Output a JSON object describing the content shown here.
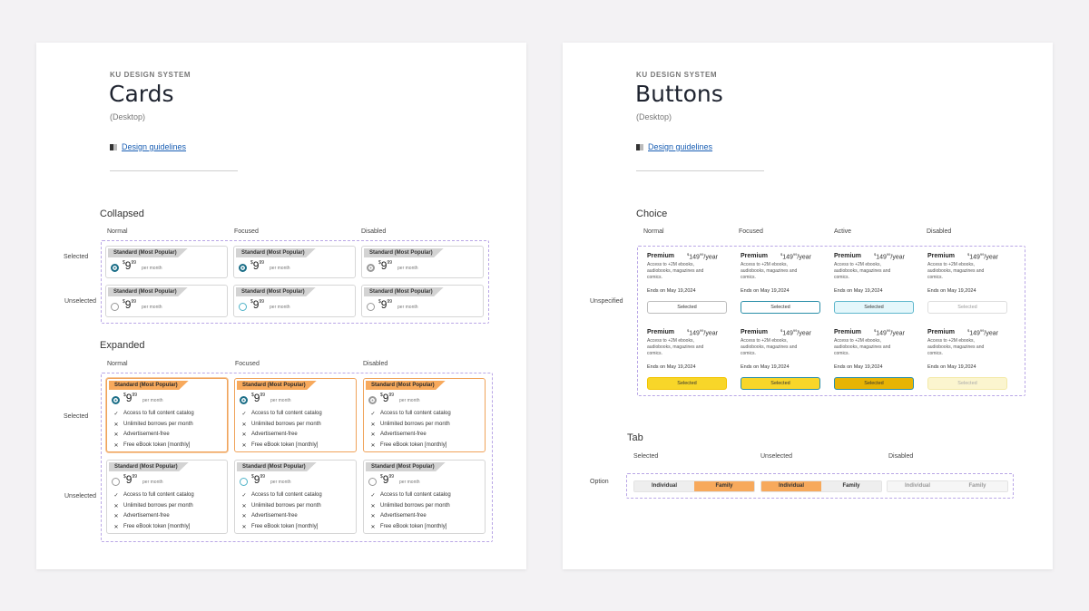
{
  "cards_sheet": {
    "label": "KU DESIGN SYSTEM",
    "title": "Cards",
    "subtitle": "(Desktop)",
    "link": "Design guidelines",
    "collapsed": {
      "title": "Collapsed",
      "columns": [
        "Normal",
        "Focused",
        "Disabled"
      ],
      "rows": [
        "Selected",
        "Unselected"
      ]
    },
    "expanded": {
      "title": "Expanded",
      "columns": [
        "Normal",
        "Focused",
        "Disabled"
      ],
      "rows": [
        "Selected",
        "Unselected"
      ]
    },
    "card": {
      "tag": "Standard (Most Popular)",
      "price_dollar": "$",
      "price_main": "9",
      "price_cents": "99",
      "per": "per month",
      "features": [
        {
          "mark": "✓",
          "text": "Access to full content catalog"
        },
        {
          "mark": "✕",
          "text": "Unlimited borrows per month"
        },
        {
          "mark": "✕",
          "text": "Advertisement-free"
        },
        {
          "mark": "✕",
          "text": "Free eBook token [monthly]"
        }
      ]
    }
  },
  "buttons_sheet": {
    "label": "KU DESIGN SYSTEM",
    "title": "Buttons",
    "subtitle": "(Desktop)",
    "link": "Design guidelines",
    "choice": {
      "title": "Choice",
      "columns": [
        "Normal",
        "Focused",
        "Active",
        "Disabled"
      ],
      "row": "Unspecified",
      "card": {
        "name": "Premium",
        "price_dollar": "$",
        "price_main": "149",
        "price_cents": "99",
        "price_suffix": "/year",
        "description": "Access to +2M ebooks, audiobooks, magazines and comics.",
        "ends": "Ends on May 19,2024",
        "button": "Selected"
      }
    },
    "tab": {
      "title": "Tab",
      "columns": [
        "Selected",
        "Unselected",
        "Disabled"
      ],
      "row": "Option",
      "options": [
        "Individual",
        "Family"
      ]
    }
  },
  "colors": {
    "accent_orange": "#f7a95c",
    "radio_teal": "#1d6f88",
    "button_yellow": "#f8d629",
    "dashed_outline": "#b9a6e6",
    "link_blue": "#1a5fb4"
  }
}
